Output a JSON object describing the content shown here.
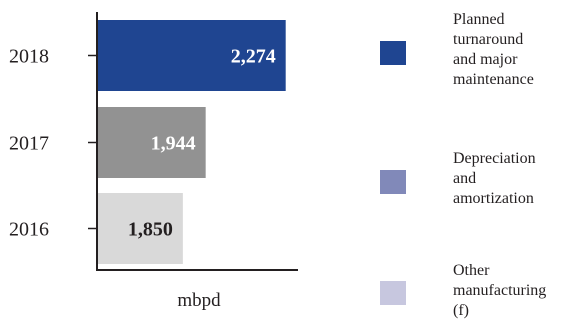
{
  "chart_data": {
    "type": "bar",
    "orientation": "horizontal",
    "categories": [
      "2018",
      "2017",
      "2016"
    ],
    "values": [
      2274,
      1944,
      1850
    ],
    "value_labels": [
      "2,274",
      "1,944",
      "1,850"
    ],
    "bar_colors": [
      "#1f4591",
      "#929292",
      "#d9d9d9"
    ],
    "label_colors": [
      "#ffffff",
      "#ffffff",
      "#231f20"
    ],
    "xlabel": "mbpd",
    "xlim": [
      1500,
      2300
    ],
    "grid": false,
    "legend_position": "right"
  },
  "legend": {
    "items": [
      {
        "lines": [
          "Planned",
          "turnaround",
          "and major",
          "maintenance"
        ],
        "color": "#1f4591"
      },
      {
        "lines": [
          "Depreciation",
          "and",
          "amortization"
        ],
        "color": "#8189b9"
      },
      {
        "lines": [
          "Other",
          "manufacturing",
          "(f)"
        ],
        "color": "#c7c7df"
      }
    ]
  },
  "colors": {
    "axis": "#231f20",
    "text": "#231f20"
  }
}
